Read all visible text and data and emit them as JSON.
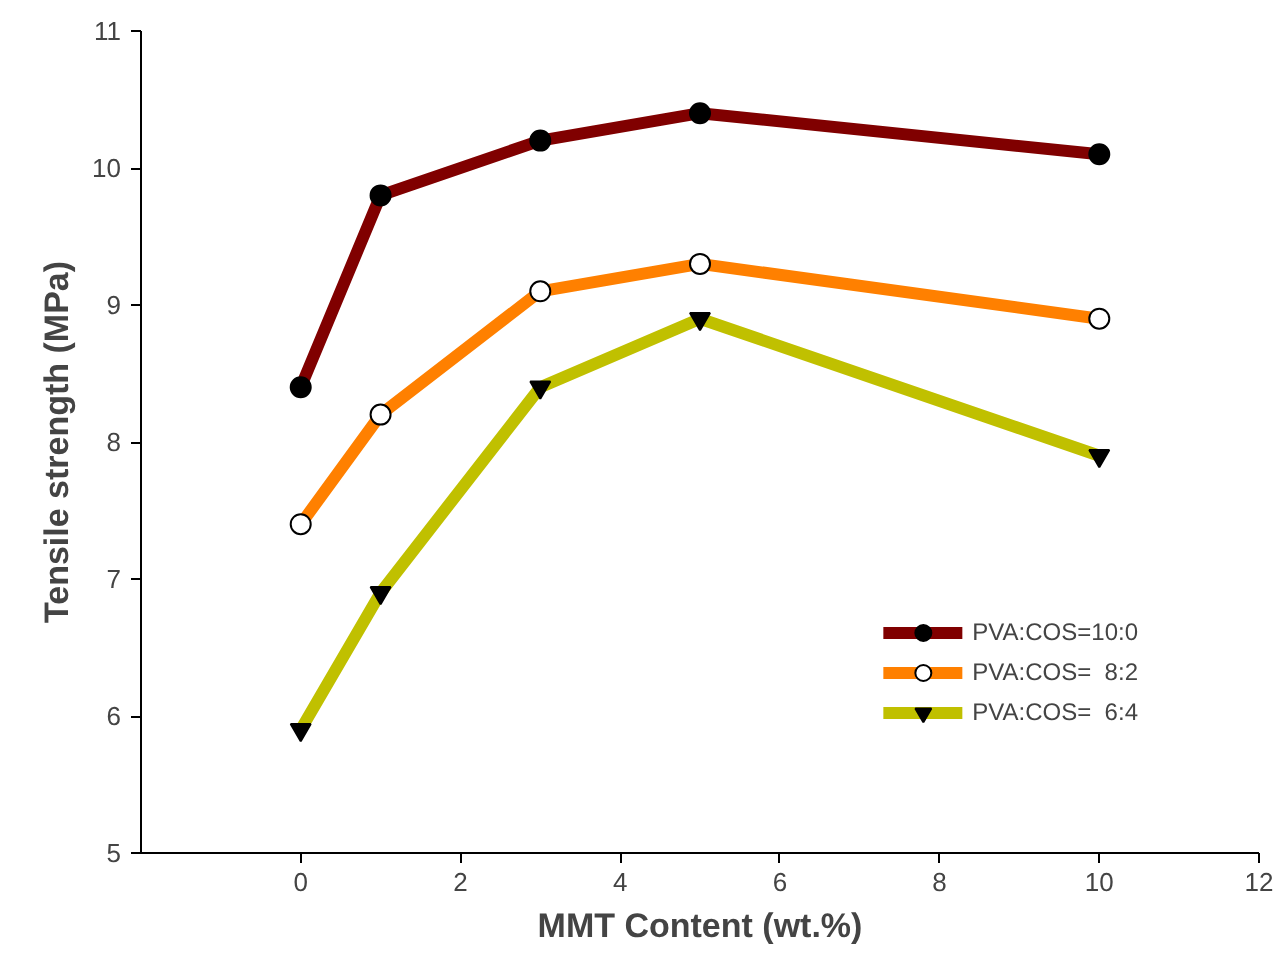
{
  "chart_data": {
    "type": "line",
    "xlabel": "MMT Content (wt.%)",
    "ylabel": "Tensile strength (MPa)",
    "x": [
      0,
      1,
      3,
      5,
      10
    ],
    "series": [
      {
        "name": "PVA:COS=10:0",
        "color": "#800000",
        "marker": "circle",
        "values": [
          8.4,
          9.8,
          10.2,
          10.4,
          10.1
        ]
      },
      {
        "name": "PVA:COS=  8:2",
        "color": "#ff8000",
        "marker": "circle",
        "values": [
          7.4,
          8.2,
          9.1,
          9.3,
          8.9
        ]
      },
      {
        "name": "PVA:COS=  6:4",
        "color": "#c0c000",
        "marker": "triangle",
        "values": [
          5.9,
          6.9,
          8.4,
          8.9,
          7.9
        ]
      }
    ],
    "xlim": [
      -2,
      12
    ],
    "xticks": [
      0,
      2,
      4,
      6,
      8,
      10,
      12
    ],
    "ylim": [
      5,
      11
    ],
    "yticks": [
      5,
      6,
      7,
      8,
      9,
      10,
      11
    ],
    "grid": false,
    "legend": "bottom right",
    "line_style": "solid"
  }
}
